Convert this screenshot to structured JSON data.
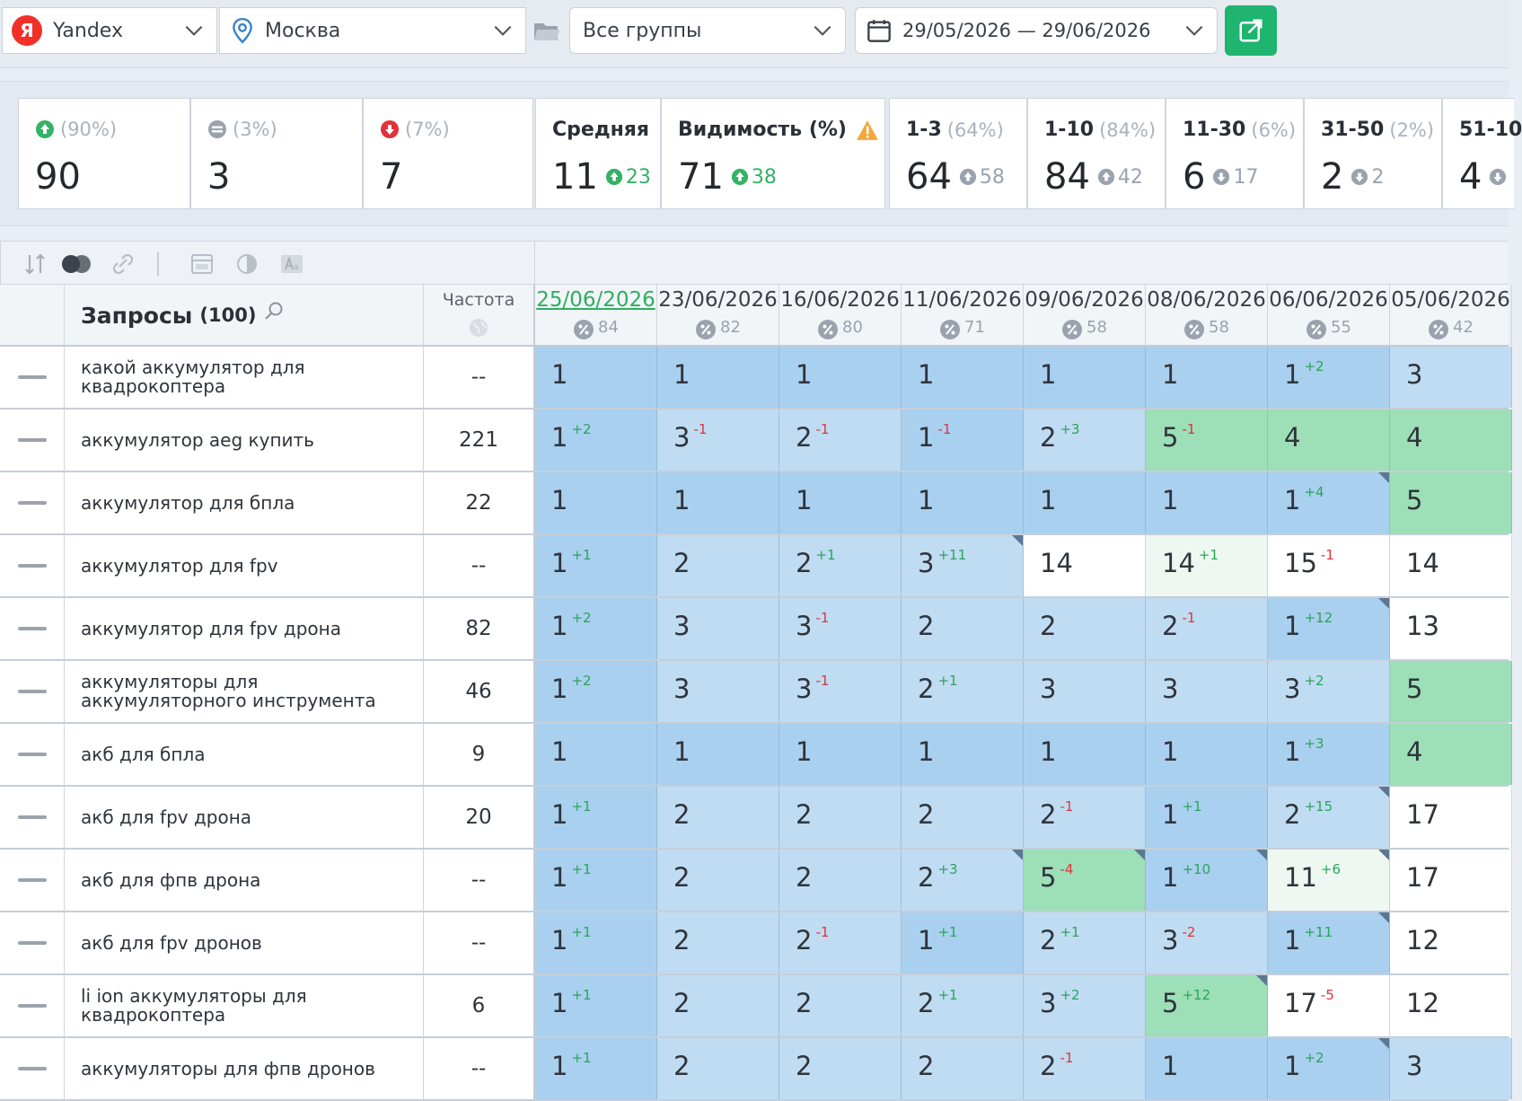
{
  "toolbar": {
    "engine": "Yandex",
    "engine_logo": "Я",
    "region": "Москва",
    "group": "Все группы",
    "date_range": "29/05/2026 — 29/06/2026"
  },
  "stats": [
    {
      "kind": "up",
      "pct": "(90%)",
      "value": "90"
    },
    {
      "kind": "same",
      "pct": "(3%)",
      "value": "3"
    },
    {
      "kind": "down",
      "pct": "(7%)",
      "value": "7"
    },
    {
      "label": "Средняя",
      "value": "11",
      "delta": "23",
      "delta_dir": "up"
    },
    {
      "label": "Видимость (%)",
      "value": "71",
      "delta": "38",
      "delta_dir": "up",
      "warn": true
    },
    {
      "label": "1-3",
      "pct": "(64%)",
      "value": "64",
      "delta": "58",
      "delta_dir": "up"
    },
    {
      "label": "1-10",
      "pct": "(84%)",
      "value": "84",
      "delta": "42",
      "delta_dir": "up"
    },
    {
      "label": "11-30",
      "pct": "(6%)",
      "value": "6",
      "delta": "17",
      "delta_dir": "down"
    },
    {
      "label": "31-50",
      "pct": "(2%)",
      "value": "2",
      "delta": "2",
      "delta_dir": "down"
    },
    {
      "label": "51-10",
      "value": "4"
    }
  ],
  "table": {
    "query_header": "Запросы",
    "query_count": "(100)",
    "freq_header": "Частота",
    "dates": [
      {
        "date": "25/06/2026",
        "vis": "84",
        "active": true
      },
      {
        "date": "23/06/2026",
        "vis": "82"
      },
      {
        "date": "16/06/2026",
        "vis": "80"
      },
      {
        "date": "11/06/2026",
        "vis": "71"
      },
      {
        "date": "09/06/2026",
        "vis": "58"
      },
      {
        "date": "08/06/2026",
        "vis": "58"
      },
      {
        "date": "06/06/2026",
        "vis": "55"
      },
      {
        "date": "05/06/2026",
        "vis": "42"
      }
    ],
    "rows": [
      {
        "query": "какой аккумулятор для квадрокоптера",
        "freq": "--",
        "cells": [
          {
            "v": "1",
            "bg": "dark"
          },
          {
            "v": "1",
            "bg": "dark"
          },
          {
            "v": "1",
            "bg": "dark"
          },
          {
            "v": "1",
            "bg": "dark"
          },
          {
            "v": "1",
            "bg": "dark"
          },
          {
            "v": "1",
            "bg": "dark"
          },
          {
            "v": "1",
            "c": "+2",
            "d": "up",
            "bg": "dark"
          },
          {
            "v": "3",
            "bg": "light"
          }
        ]
      },
      {
        "query": "аккумулятор aeg купить",
        "freq": "221",
        "cells": [
          {
            "v": "1",
            "c": "+2",
            "d": "up",
            "bg": "dark"
          },
          {
            "v": "3",
            "c": "-1",
            "d": "down",
            "bg": "light"
          },
          {
            "v": "2",
            "c": "-1",
            "d": "down",
            "bg": "light"
          },
          {
            "v": "1",
            "c": "-1",
            "d": "down",
            "bg": "dark"
          },
          {
            "v": "2",
            "c": "+3",
            "d": "up",
            "bg": "light"
          },
          {
            "v": "5",
            "c": "-1",
            "d": "down",
            "bg": "green"
          },
          {
            "v": "4",
            "bg": "green"
          },
          {
            "v": "4",
            "bg": "green"
          }
        ]
      },
      {
        "query": "аккумулятор для бпла",
        "freq": "22",
        "cells": [
          {
            "v": "1",
            "bg": "dark"
          },
          {
            "v": "1",
            "bg": "dark"
          },
          {
            "v": "1",
            "bg": "dark"
          },
          {
            "v": "1",
            "bg": "dark"
          },
          {
            "v": "1",
            "bg": "dark"
          },
          {
            "v": "1",
            "bg": "dark"
          },
          {
            "v": "1",
            "c": "+4",
            "d": "up",
            "bg": "dark",
            "corner": true
          },
          {
            "v": "5",
            "bg": "green"
          }
        ]
      },
      {
        "query": "аккумулятор для fpv",
        "freq": "--",
        "cells": [
          {
            "v": "1",
            "c": "+1",
            "d": "up",
            "bg": "dark"
          },
          {
            "v": "2",
            "bg": "light"
          },
          {
            "v": "2",
            "c": "+1",
            "d": "up",
            "bg": "light"
          },
          {
            "v": "3",
            "c": "+11",
            "d": "up",
            "bg": "light",
            "corner": true
          },
          {
            "v": "14",
            "bg": "white"
          },
          {
            "v": "14",
            "c": "+1",
            "d": "up",
            "bg": "pale"
          },
          {
            "v": "15",
            "c": "-1",
            "d": "down",
            "bg": "white"
          },
          {
            "v": "14",
            "bg": "white"
          }
        ]
      },
      {
        "query": "аккумулятор для fpv дрона",
        "freq": "82",
        "cells": [
          {
            "v": "1",
            "c": "+2",
            "d": "up",
            "bg": "dark"
          },
          {
            "v": "3",
            "bg": "light"
          },
          {
            "v": "3",
            "c": "-1",
            "d": "down",
            "bg": "light"
          },
          {
            "v": "2",
            "bg": "light"
          },
          {
            "v": "2",
            "bg": "light"
          },
          {
            "v": "2",
            "c": "-1",
            "d": "down",
            "bg": "light"
          },
          {
            "v": "1",
            "c": "+12",
            "d": "up",
            "bg": "dark",
            "corner": true
          },
          {
            "v": "13",
            "bg": "white"
          }
        ]
      },
      {
        "query": "аккумуляторы для аккумуляторного инструмента",
        "freq": "46",
        "cells": [
          {
            "v": "1",
            "c": "+2",
            "d": "up",
            "bg": "dark"
          },
          {
            "v": "3",
            "bg": "light"
          },
          {
            "v": "3",
            "c": "-1",
            "d": "down",
            "bg": "light"
          },
          {
            "v": "2",
            "c": "+1",
            "d": "up",
            "bg": "light"
          },
          {
            "v": "3",
            "bg": "light"
          },
          {
            "v": "3",
            "bg": "light"
          },
          {
            "v": "3",
            "c": "+2",
            "d": "up",
            "bg": "light"
          },
          {
            "v": "5",
            "bg": "green"
          }
        ]
      },
      {
        "query": "акб для бпла",
        "freq": "9",
        "cells": [
          {
            "v": "1",
            "bg": "dark"
          },
          {
            "v": "1",
            "bg": "dark"
          },
          {
            "v": "1",
            "bg": "dark"
          },
          {
            "v": "1",
            "bg": "dark"
          },
          {
            "v": "1",
            "bg": "dark"
          },
          {
            "v": "1",
            "bg": "dark"
          },
          {
            "v": "1",
            "c": "+3",
            "d": "up",
            "bg": "dark"
          },
          {
            "v": "4",
            "bg": "green"
          }
        ]
      },
      {
        "query": "акб для fpv дрона",
        "freq": "20",
        "cells": [
          {
            "v": "1",
            "c": "+1",
            "d": "up",
            "bg": "dark"
          },
          {
            "v": "2",
            "bg": "light"
          },
          {
            "v": "2",
            "bg": "light"
          },
          {
            "v": "2",
            "bg": "light"
          },
          {
            "v": "2",
            "c": "-1",
            "d": "down",
            "bg": "light"
          },
          {
            "v": "1",
            "c": "+1",
            "d": "up",
            "bg": "dark"
          },
          {
            "v": "2",
            "c": "+15",
            "d": "up",
            "bg": "light",
            "corner": true
          },
          {
            "v": "17",
            "bg": "white"
          }
        ]
      },
      {
        "query": "акб для фпв дрона",
        "freq": "--",
        "cells": [
          {
            "v": "1",
            "c": "+1",
            "d": "up",
            "bg": "dark"
          },
          {
            "v": "2",
            "bg": "light"
          },
          {
            "v": "2",
            "bg": "light"
          },
          {
            "v": "2",
            "c": "+3",
            "d": "up",
            "bg": "light",
            "corner": true
          },
          {
            "v": "5",
            "c": "-4",
            "d": "down",
            "bg": "green",
            "corner": true
          },
          {
            "v": "1",
            "c": "+10",
            "d": "up",
            "bg": "dark",
            "corner": true
          },
          {
            "v": "11",
            "c": "+6",
            "d": "up",
            "bg": "pale",
            "corner": true
          },
          {
            "v": "17",
            "bg": "white"
          }
        ]
      },
      {
        "query": "акб для fpv дронов",
        "freq": "--",
        "cells": [
          {
            "v": "1",
            "c": "+1",
            "d": "up",
            "bg": "dark"
          },
          {
            "v": "2",
            "bg": "light"
          },
          {
            "v": "2",
            "c": "-1",
            "d": "down",
            "bg": "light"
          },
          {
            "v": "1",
            "c": "+1",
            "d": "up",
            "bg": "dark"
          },
          {
            "v": "2",
            "c": "+1",
            "d": "up",
            "bg": "light"
          },
          {
            "v": "3",
            "c": "-2",
            "d": "down",
            "bg": "light"
          },
          {
            "v": "1",
            "c": "+11",
            "d": "up",
            "bg": "dark",
            "corner": true
          },
          {
            "v": "12",
            "bg": "white"
          }
        ]
      },
      {
        "query": "li ion аккумуляторы для квадрокоптера",
        "freq": "6",
        "cells": [
          {
            "v": "1",
            "c": "+1",
            "d": "up",
            "bg": "dark"
          },
          {
            "v": "2",
            "bg": "light"
          },
          {
            "v": "2",
            "bg": "light"
          },
          {
            "v": "2",
            "c": "+1",
            "d": "up",
            "bg": "light"
          },
          {
            "v": "3",
            "c": "+2",
            "d": "up",
            "bg": "light"
          },
          {
            "v": "5",
            "c": "+12",
            "d": "up",
            "bg": "green",
            "corner": true
          },
          {
            "v": "17",
            "c": "-5",
            "d": "down",
            "bg": "white"
          },
          {
            "v": "12",
            "bg": "white"
          }
        ]
      },
      {
        "query": "аккумуляторы для фпв дронов",
        "freq": "--",
        "cells": [
          {
            "v": "1",
            "c": "+1",
            "d": "up",
            "bg": "dark"
          },
          {
            "v": "2",
            "bg": "light"
          },
          {
            "v": "2",
            "bg": "light"
          },
          {
            "v": "2",
            "bg": "light"
          },
          {
            "v": "2",
            "c": "-1",
            "d": "down",
            "bg": "light"
          },
          {
            "v": "1",
            "bg": "dark"
          },
          {
            "v": "1",
            "c": "+2",
            "d": "up",
            "bg": "dark",
            "corner": true
          },
          {
            "v": "3",
            "bg": "light"
          }
        ]
      }
    ]
  }
}
